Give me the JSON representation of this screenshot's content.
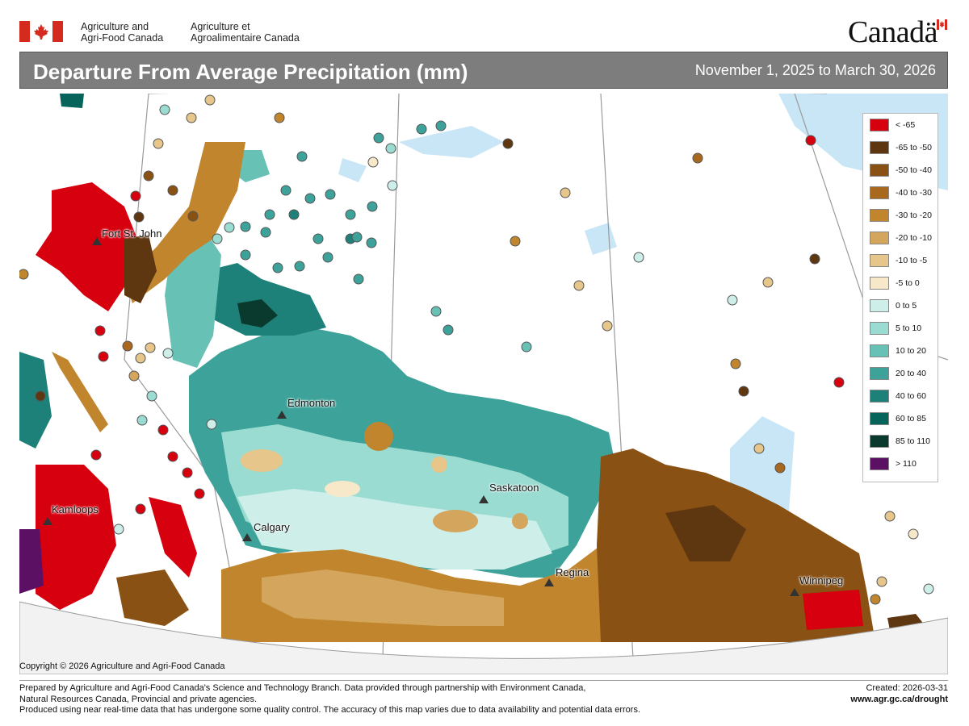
{
  "header": {
    "dept_en_line1": "Agriculture and",
    "dept_en_line2": "Agri-Food Canada",
    "dept_fr_line1": "Agriculture et",
    "dept_fr_line2": "Agroalimentaire Canada",
    "wordmark": "Canadä"
  },
  "title": "Departure From Average Precipitation (mm)",
  "date_range": "November 1, 2025 to March 30, 2026",
  "legend": {
    "items": [
      {
        "label": "< -65",
        "color": "#d7000f"
      },
      {
        "label": "-65 to -50",
        "color": "#5e3610"
      },
      {
        "label": "-50 to -40",
        "color": "#8a5114"
      },
      {
        "label": "-40 to -30",
        "color": "#a8691f"
      },
      {
        "label": "-30 to -20",
        "color": "#c0852d"
      },
      {
        "label": "-20 to -10",
        "color": "#d4a55c"
      },
      {
        "label": "-10 to -5",
        "color": "#e6c68a"
      },
      {
        "label": "-5 to 0",
        "color": "#f6e8c8"
      },
      {
        "label": "0 to 5",
        "color": "#cdeee9"
      },
      {
        "label": "5 to 10",
        "color": "#9adcd1"
      },
      {
        "label": "10 to 20",
        "color": "#67c1b5"
      },
      {
        "label": "20 to 40",
        "color": "#3da39a"
      },
      {
        "label": "40 to 60",
        "color": "#1e8179"
      },
      {
        "label": "60 to 85",
        "color": "#07645a"
      },
      {
        "label": "85 to 110",
        "color": "#0a3a2d"
      },
      {
        "label": "> 110",
        "color": "#5b1064"
      }
    ]
  },
  "cities": {
    "fort_st_john": "Fort St. John",
    "edmonton": "Edmonton",
    "saskatoon": "Saskatoon",
    "kamloops": "Kamloops",
    "calgary": "Calgary",
    "regina": "Regina",
    "winnipeg": "Winnipeg"
  },
  "copyright": "Copyright © 2026 Agriculture and Agri-Food Canada",
  "footer": {
    "line1": "Prepared by Agriculture and Agri-Food Canada's Science and Technology Branch. Data provided through partnership with Environment Canada,",
    "line2": "Natural Resources Canada, Provincial and private agencies.",
    "line3": "Produced using near real-time data that has undergone some quality control. The accuracy of this map varies due to data availability and potential data errors.",
    "created": "Created: 2026-03-31",
    "url": "www.agr.gc.ca/drought"
  },
  "colors": {
    "title_bar": "#7d7d7d",
    "canada_red": "#d52b1e",
    "water": "#c9e6f7",
    "border_lines": "#9a9a9a"
  }
}
